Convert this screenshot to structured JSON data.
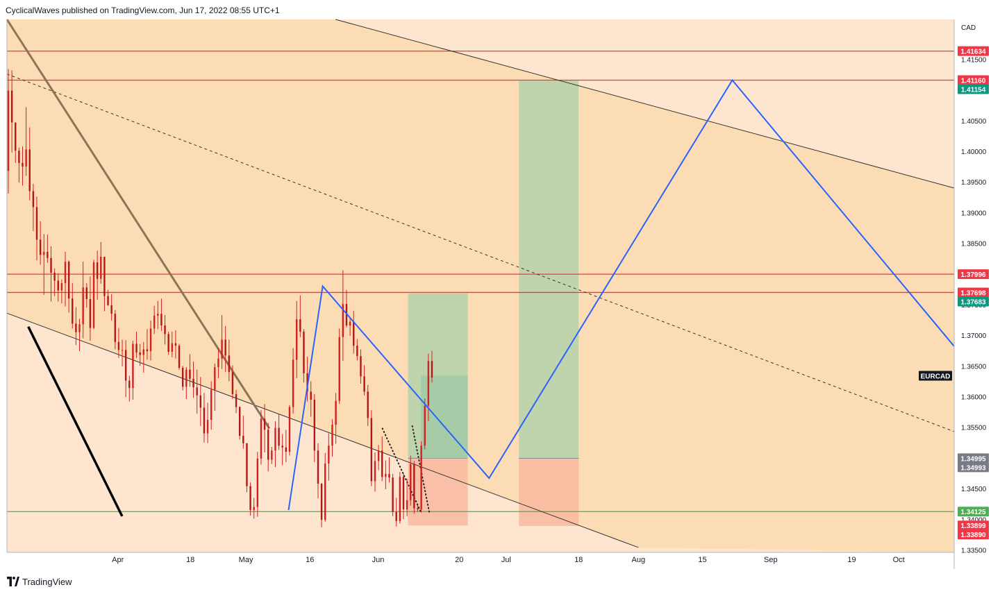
{
  "header": {
    "published_text": "CyclicalWaves published on TradingView.com, Jun 17, 2022 08:55 UTC+1"
  },
  "footer": {
    "brand": "TradingView"
  },
  "colors": {
    "background_upper": "#fcdcb4",
    "background_lower": "#fde5cf",
    "red_line": "#f23645",
    "green_line": "#4caf50",
    "blue_path": "#2962ff",
    "profit_zone": "#b4d2aa",
    "loss_zone": "#f9b8a0",
    "candle": "#d32020",
    "teal_label": "#089981",
    "gray_label": "#787b86"
  },
  "chart_data": {
    "type": "candlestick",
    "symbol": "EURCAD",
    "currency": "CAD",
    "y_ticks": [
      "1.41500",
      "1.41000",
      "1.40500",
      "1.40000",
      "1.39500",
      "1.39000",
      "1.38500",
      "1.38000",
      "1.37500",
      "1.37000",
      "1.36500",
      "1.36000",
      "1.35500",
      "1.35000",
      "1.34500",
      "1.34000",
      "1.33500"
    ],
    "y_tick_values": [
      1.415,
      1.41,
      1.405,
      1.4,
      1.395,
      1.39,
      1.385,
      1.38,
      1.375,
      1.37,
      1.365,
      1.36,
      1.355,
      1.35,
      1.345,
      1.34,
      1.335
    ],
    "ylim": [
      1.3346,
      1.4215
    ],
    "x_ticks": [
      "Apr",
      "18",
      "May",
      "16",
      "Jun",
      "20",
      "Jul",
      "18",
      "Aug",
      "15",
      "Sep",
      "19",
      "Oct"
    ],
    "x_tick_days": [
      0,
      17,
      30,
      45,
      61,
      80,
      91,
      108,
      122,
      137,
      153,
      172,
      183
    ],
    "xlim_days": [
      -26,
      196
    ],
    "price_labels": [
      {
        "text": "1.41634",
        "value": 1.41634,
        "color": "#f23645"
      },
      {
        "text": "1.41160",
        "value": 1.4116,
        "color": "#f23645"
      },
      {
        "text": "1.41154",
        "value": 1.41154,
        "color": "#089981"
      },
      {
        "text": "1.37996",
        "value": 1.37996,
        "color": "#f23645"
      },
      {
        "text": "1.37698",
        "value": 1.37698,
        "color": "#f23645"
      },
      {
        "text": "1.37683",
        "value": 1.37683,
        "color": "#089981"
      },
      {
        "text": "1.34995",
        "value": 1.34995,
        "color": "#787b86"
      },
      {
        "text": "1.34993",
        "value": 1.34993,
        "color": "#787b86"
      },
      {
        "text": "1.34125",
        "value": 1.34125,
        "color": "#4caf50"
      },
      {
        "text": "1.33899",
        "value": 1.33899,
        "color": "#f23645"
      },
      {
        "text": "1.33890",
        "value": 1.3389,
        "color": "#f23645"
      }
    ],
    "symbol_label_value": 1.3634,
    "horizontal_lines": [
      {
        "value": 1.41634,
        "color": "#f23645"
      },
      {
        "value": 1.4116,
        "color": "#f23645"
      },
      {
        "value": 1.37996,
        "color": "#f23645"
      },
      {
        "value": 1.37698,
        "color": "#f23645"
      },
      {
        "value": 1.34125,
        "color": "#4caf50"
      }
    ],
    "trend_lines": [
      {
        "style": "solid-thin",
        "color": "#333333",
        "from": [
          -26,
          1.3736
        ],
        "to": [
          122,
          1.3354
        ]
      },
      {
        "style": "solid-thin",
        "color": "#333333",
        "from": [
          51,
          1.4215
        ],
        "to": [
          196,
          1.394
        ]
      },
      {
        "style": "dashed",
        "color": "#333333",
        "from": [
          -26,
          1.4126
        ],
        "to": [
          196,
          1.3543
        ]
      },
      {
        "style": "solid-thick",
        "color": "#8a7558",
        "from": [
          -26,
          1.4215
        ],
        "to": [
          35.5,
          1.3548
        ]
      },
      {
        "style": "solid-heavy",
        "color": "#000000",
        "from": [
          -21,
          1.3714
        ],
        "to": [
          1,
          1.3405
        ]
      },
      {
        "style": "dotted",
        "color": "#222222",
        "from": [
          62,
          1.3548
        ],
        "to": [
          71,
          1.3412
        ]
      },
      {
        "style": "dotted",
        "color": "#222222",
        "from": [
          69,
          1.3552
        ],
        "to": [
          73,
          1.3411
        ]
      }
    ],
    "projection_path": {
      "color": "#2962ff",
      "points": [
        [
          40,
          1.3415
        ],
        [
          48,
          1.378
        ],
        [
          87,
          1.3467
        ],
        [
          144,
          1.4116
        ],
        [
          196,
          1.3682
        ]
      ]
    },
    "position_zones": [
      {
        "x_from": 68,
        "x_to": 82,
        "target": 1.37683,
        "entry": 1.34995,
        "stop": 1.33899
      },
      {
        "x_from": 94,
        "x_to": 108,
        "target": 1.41154,
        "entry": 1.34993,
        "stop": 1.3389
      },
      {
        "x_from": 71,
        "x_to": 82,
        "target": 1.3634,
        "entry": 1.34995,
        "stop": 1.34995,
        "kind": "inner"
      }
    ],
    "candles": [
      [
        1.3968,
        1.4134,
        1.3931,
        1.4099
      ],
      [
        1.4099,
        1.4132,
        1.3998,
        1.4047
      ],
      [
        1.4047,
        1.4043,
        1.3981,
        1.4001
      ],
      [
        1.4001,
        1.4006,
        1.3949,
        1.3981
      ],
      [
        1.3981,
        1.4008,
        1.3944,
        1.3975
      ],
      [
        1.3975,
        1.4072,
        1.396,
        1.4003
      ],
      [
        1.4003,
        1.4039,
        1.392,
        1.3935
      ],
      [
        1.3935,
        1.3947,
        1.387,
        1.3909
      ],
      [
        1.3909,
        1.3926,
        1.3822,
        1.3856
      ],
      [
        1.3856,
        1.3886,
        1.3815,
        1.3831
      ],
      [
        1.3831,
        1.3865,
        1.3766,
        1.3836
      ],
      [
        1.3836,
        1.3864,
        1.3818,
        1.3826
      ],
      [
        1.3826,
        1.3845,
        1.3755,
        1.3802
      ],
      [
        1.3802,
        1.3809,
        1.3764,
        1.3789
      ],
      [
        1.3789,
        1.3801,
        1.3755,
        1.3773
      ],
      [
        1.3773,
        1.3791,
        1.3752,
        1.3785
      ],
      [
        1.3785,
        1.3836,
        1.3747,
        1.382
      ],
      [
        1.382,
        1.3822,
        1.3737,
        1.376
      ],
      [
        1.376,
        1.3785,
        1.3711,
        1.3719
      ],
      [
        1.3719,
        1.3746,
        1.3684,
        1.3705
      ],
      [
        1.3705,
        1.3727,
        1.3674,
        1.3718
      ],
      [
        1.3718,
        1.382,
        1.3695,
        1.3778
      ],
      [
        1.3778,
        1.3785,
        1.3745,
        1.3759
      ],
      [
        1.3759,
        1.3796,
        1.3691,
        1.3712
      ],
      [
        1.3712,
        1.3823,
        1.371,
        1.3819
      ],
      [
        1.3819,
        1.3838,
        1.3758,
        1.3792
      ],
      [
        1.3792,
        1.3852,
        1.3784,
        1.3828
      ],
      [
        1.3828,
        1.3828,
        1.3739,
        1.3764
      ],
      [
        1.3764,
        1.3774,
        1.3748,
        1.3749
      ],
      [
        1.3749,
        1.3767,
        1.3724,
        1.3735
      ],
      [
        1.3735,
        1.3741,
        1.3677,
        1.3689
      ],
      [
        1.3689,
        1.3712,
        1.3663,
        1.3676
      ],
      [
        1.3676,
        1.3693,
        1.3649,
        1.3676
      ],
      [
        1.3676,
        1.3692,
        1.3599,
        1.3626
      ],
      [
        1.3626,
        1.3634,
        1.3592,
        1.3614
      ],
      [
        1.3614,
        1.3691,
        1.3595,
        1.3686
      ],
      [
        1.3686,
        1.3706,
        1.3663,
        1.3672
      ],
      [
        1.3672,
        1.3686,
        1.365,
        1.3668
      ],
      [
        1.3668,
        1.3689,
        1.3639,
        1.3677
      ],
      [
        1.3677,
        1.371,
        1.366,
        1.3674
      ],
      [
        1.3674,
        1.3724,
        1.3659,
        1.3711
      ],
      [
        1.3711,
        1.3748,
        1.3702,
        1.3732
      ],
      [
        1.3732,
        1.3756,
        1.371,
        1.3735
      ],
      [
        1.3735,
        1.376,
        1.3707,
        1.3716
      ],
      [
        1.3716,
        1.3733,
        1.3685,
        1.3702
      ],
      [
        1.3702,
        1.3706,
        1.3668,
        1.3673
      ],
      [
        1.3673,
        1.3706,
        1.3664,
        1.3687
      ],
      [
        1.3687,
        1.3708,
        1.3662,
        1.3683
      ],
      [
        1.3683,
        1.3686,
        1.3644,
        1.3647
      ],
      [
        1.3647,
        1.365,
        1.361,
        1.3616
      ],
      [
        1.3616,
        1.3648,
        1.3596,
        1.3644
      ],
      [
        1.3644,
        1.3669,
        1.3616,
        1.3629
      ],
      [
        1.3629,
        1.3657,
        1.3598,
        1.3615
      ],
      [
        1.3615,
        1.3644,
        1.3572,
        1.3602
      ],
      [
        1.3602,
        1.3632,
        1.3552,
        1.3582
      ],
      [
        1.3582,
        1.3606,
        1.3525,
        1.354
      ],
      [
        1.354,
        1.359,
        1.3524,
        1.3562
      ],
      [
        1.3562,
        1.3625,
        1.3546,
        1.3611
      ],
      [
        1.3611,
        1.3654,
        1.3577,
        1.3648
      ],
      [
        1.3648,
        1.3679,
        1.363,
        1.3662
      ],
      [
        1.3662,
        1.3733,
        1.3645,
        1.3693
      ],
      [
        1.3693,
        1.3715,
        1.364,
        1.3667
      ],
      [
        1.3667,
        1.3693,
        1.3625,
        1.364
      ],
      [
        1.364,
        1.3651,
        1.3596,
        1.3604
      ],
      [
        1.3604,
        1.3611,
        1.3573,
        1.3583
      ],
      [
        1.3583,
        1.3584,
        1.353,
        1.3536
      ],
      [
        1.3536,
        1.3569,
        1.3515,
        1.3524
      ],
      [
        1.3524,
        1.3524,
        1.3444,
        1.3454
      ],
      [
        1.3454,
        1.346,
        1.3406,
        1.3415
      ],
      [
        1.3415,
        1.3435,
        1.3401,
        1.342
      ],
      [
        1.342,
        1.351,
        1.3404,
        1.3499
      ],
      [
        1.3499,
        1.3578,
        1.3489,
        1.3564
      ],
      [
        1.3564,
        1.3588,
        1.3509,
        1.3546
      ],
      [
        1.3546,
        1.3557,
        1.3478,
        1.3497
      ],
      [
        1.3497,
        1.3518,
        1.349,
        1.3512
      ],
      [
        1.3512,
        1.356,
        1.3485,
        1.3549
      ],
      [
        1.3549,
        1.3572,
        1.3513,
        1.352
      ],
      [
        1.352,
        1.3539,
        1.3488,
        1.3517
      ],
      [
        1.3517,
        1.3546,
        1.3493,
        1.351
      ],
      [
        1.351,
        1.3586,
        1.3504,
        1.3583
      ],
      [
        1.3583,
        1.3679,
        1.3572,
        1.366
      ],
      [
        1.366,
        1.3756,
        1.363,
        1.3726
      ],
      [
        1.3726,
        1.3765,
        1.3697,
        1.3706
      ],
      [
        1.3706,
        1.371,
        1.3623,
        1.3638
      ],
      [
        1.3638,
        1.3665,
        1.3592,
        1.3608
      ],
      [
        1.3608,
        1.3625,
        1.3567,
        1.3595
      ],
      [
        1.3595,
        1.3604,
        1.3493,
        1.3512
      ],
      [
        1.3512,
        1.3524,
        1.3434,
        1.3458
      ],
      [
        1.3458,
        1.3459,
        1.3387,
        1.3399
      ],
      [
        1.3399,
        1.3508,
        1.3396,
        1.3491
      ],
      [
        1.3491,
        1.354,
        1.3463,
        1.352
      ],
      [
        1.352,
        1.3563,
        1.3502,
        1.3554
      ],
      [
        1.3554,
        1.3606,
        1.3523,
        1.3593
      ],
      [
        1.3593,
        1.3711,
        1.3588,
        1.3697
      ],
      [
        1.3697,
        1.3806,
        1.3658,
        1.3751
      ],
      [
        1.3751,
        1.3774,
        1.3713,
        1.3716
      ],
      [
        1.3716,
        1.3728,
        1.3699,
        1.3722
      ],
      [
        1.3722,
        1.374,
        1.367,
        1.3683
      ],
      [
        1.3683,
        1.3694,
        1.3659,
        1.3666
      ],
      [
        1.3666,
        1.3677,
        1.3621,
        1.3633
      ],
      [
        1.3633,
        1.3651,
        1.3602,
        1.3608
      ],
      [
        1.3608,
        1.3619,
        1.3552,
        1.3565
      ],
      [
        1.3565,
        1.3578,
        1.3454,
        1.3462
      ],
      [
        1.3462,
        1.3509,
        1.3445,
        1.3495
      ],
      [
        1.3495,
        1.3521,
        1.348,
        1.3512
      ],
      [
        1.3512,
        1.3535,
        1.3462,
        1.3469
      ],
      [
        1.3469,
        1.3496,
        1.3449,
        1.3474
      ],
      [
        1.3474,
        1.3501,
        1.346,
        1.3468
      ],
      [
        1.3468,
        1.3474,
        1.3405,
        1.3412
      ],
      [
        1.3412,
        1.3435,
        1.3388,
        1.3397
      ],
      [
        1.3397,
        1.3477,
        1.3393,
        1.3469
      ],
      [
        1.3469,
        1.3474,
        1.34,
        1.3416
      ],
      [
        1.3416,
        1.3466,
        1.3405,
        1.3431
      ],
      [
        1.3431,
        1.3504,
        1.3422,
        1.349
      ],
      [
        1.349,
        1.3495,
        1.3409,
        1.3418
      ],
      [
        1.3418,
        1.3423,
        1.3412,
        1.3416
      ],
      [
        1.3416,
        1.3527,
        1.3411,
        1.352
      ],
      [
        1.352,
        1.3597,
        1.3514,
        1.3585
      ],
      [
        1.3585,
        1.367,
        1.356,
        1.3658
      ],
      [
        1.3658,
        1.3675,
        1.3623,
        1.3631
      ]
    ]
  }
}
